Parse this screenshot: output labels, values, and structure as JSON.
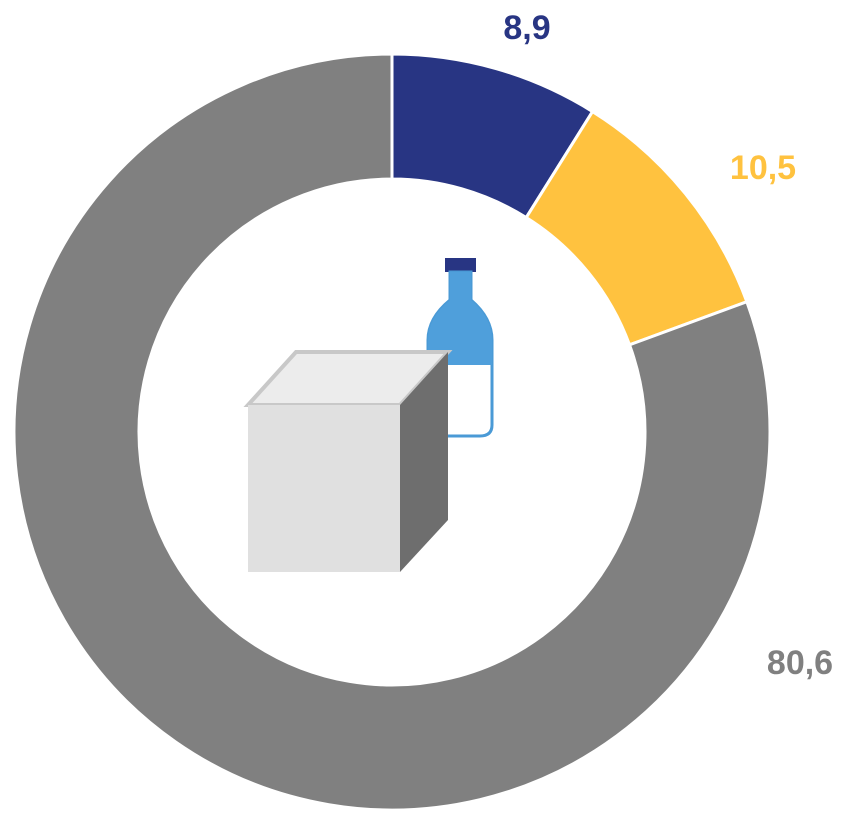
{
  "chart_data": {
    "type": "donut",
    "categories": [
      null,
      null,
      null
    ],
    "values": [
      8.9,
      10.5,
      80.6
    ],
    "value_labels": [
      "8,9",
      "10,5",
      "80,6"
    ],
    "colors": [
      "#283583",
      "#ffc23f",
      "#808080"
    ]
  }
}
